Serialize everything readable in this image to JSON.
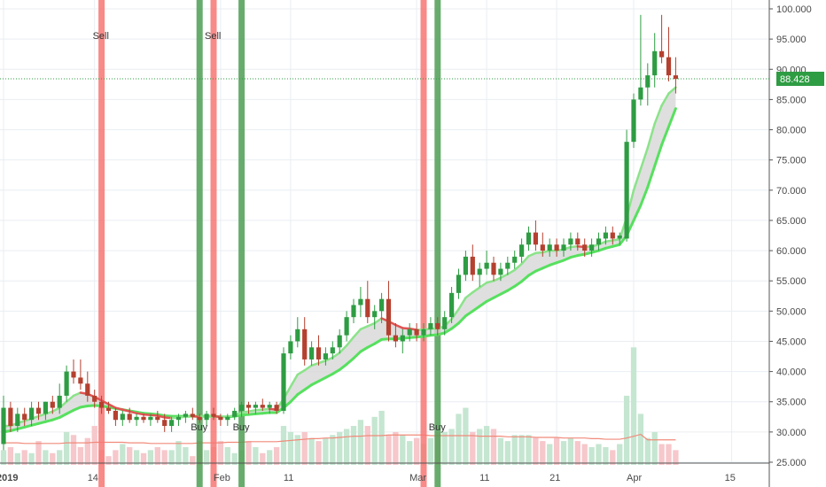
{
  "chart_data": {
    "type": "candlestick",
    "y_axis": {
      "min": 25,
      "max": 100,
      "ticks": [
        "25.000",
        "30.000",
        "35.000",
        "40.000",
        "45.000",
        "50.000",
        "55.000",
        "60.000",
        "65.000",
        "70.000",
        "75.000",
        "80.000",
        "85.000",
        "90.000",
        "95.000",
        "100.000"
      ]
    },
    "x_axis": {
      "ticks": [
        {
          "label": "2019",
          "day": 1,
          "bold": true
        },
        {
          "label": "14",
          "day": 14
        },
        {
          "label": "Feb",
          "day": 32
        },
        {
          "label": "11",
          "day": 42
        },
        {
          "label": "Mar",
          "day": 60
        },
        {
          "label": "11",
          "day": 70
        },
        {
          "label": "21",
          "day": 80
        },
        {
          "label": "Apr",
          "day": 91
        },
        {
          "label": "15",
          "day": 105
        }
      ]
    },
    "last_price": "88.428",
    "last_price_value": 88.428,
    "candles": [
      {
        "o": 28,
        "h": 36,
        "l": 27,
        "c": 34
      },
      {
        "o": 34,
        "h": 35,
        "l": 30,
        "c": 31
      },
      {
        "o": 31,
        "h": 34,
        "l": 30,
        "c": 33
      },
      {
        "o": 33,
        "h": 34,
        "l": 31,
        "c": 32
      },
      {
        "o": 32,
        "h": 35,
        "l": 31,
        "c": 34
      },
      {
        "o": 34,
        "h": 35,
        "l": 32,
        "c": 33
      },
      {
        "o": 33,
        "h": 35,
        "l": 32,
        "c": 35
      },
      {
        "o": 35,
        "h": 36,
        "l": 33,
        "c": 34
      },
      {
        "o": 34,
        "h": 38,
        "l": 33,
        "c": 36
      },
      {
        "o": 36,
        "h": 41,
        "l": 35,
        "c": 40
      },
      {
        "o": 40,
        "h": 42,
        "l": 38,
        "c": 39
      },
      {
        "o": 39,
        "h": 42,
        "l": 37,
        "c": 38
      },
      {
        "o": 38,
        "h": 40,
        "l": 35,
        "c": 36
      },
      {
        "o": 36,
        "h": 37,
        "l": 34,
        "c": 35
      },
      {
        "o": 35,
        "h": 36,
        "l": 33,
        "c": 34
      },
      {
        "o": 34,
        "h": 35,
        "l": 33,
        "c": 33.5
      },
      {
        "o": 33.5,
        "h": 34,
        "l": 31,
        "c": 32
      },
      {
        "o": 32,
        "h": 33.5,
        "l": 31,
        "c": 33
      },
      {
        "o": 33,
        "h": 34,
        "l": 31.5,
        "c": 32
      },
      {
        "o": 32,
        "h": 33,
        "l": 31,
        "c": 32.5
      },
      {
        "o": 32.5,
        "h": 33,
        "l": 31.5,
        "c": 32
      },
      {
        "o": 32,
        "h": 33,
        "l": 31,
        "c": 32.5
      },
      {
        "o": 32.5,
        "h": 33.5,
        "l": 31.5,
        "c": 32
      },
      {
        "o": 32,
        "h": 33,
        "l": 30,
        "c": 31
      },
      {
        "o": 31,
        "h": 32.5,
        "l": 30,
        "c": 32
      },
      {
        "o": 32,
        "h": 33,
        "l": 31,
        "c": 32.5
      },
      {
        "o": 32.5,
        "h": 33.5,
        "l": 31.5,
        "c": 33
      },
      {
        "o": 33,
        "h": 34,
        "l": 32,
        "c": 32.5
      },
      {
        "o": 32.5,
        "h": 33,
        "l": 31.5,
        "c": 32
      },
      {
        "o": 32,
        "h": 33.5,
        "l": 31,
        "c": 33
      },
      {
        "o": 33,
        "h": 34,
        "l": 32,
        "c": 32.5
      },
      {
        "o": 32.5,
        "h": 33,
        "l": 31,
        "c": 32
      },
      {
        "o": 32,
        "h": 33,
        "l": 31,
        "c": 32.5
      },
      {
        "o": 32.5,
        "h": 34,
        "l": 32,
        "c": 33.5
      },
      {
        "o": 33.5,
        "h": 35,
        "l": 32.5,
        "c": 34.5
      },
      {
        "o": 34.5,
        "h": 35,
        "l": 33,
        "c": 34
      },
      {
        "o": 34,
        "h": 35,
        "l": 33,
        "c": 34.5
      },
      {
        "o": 34.5,
        "h": 35.5,
        "l": 33.5,
        "c": 34
      },
      {
        "o": 34,
        "h": 35,
        "l": 33,
        "c": 34.5
      },
      {
        "o": 34.5,
        "h": 35,
        "l": 33,
        "c": 33.5
      },
      {
        "o": 33.5,
        "h": 44,
        "l": 33,
        "c": 43
      },
      {
        "o": 43,
        "h": 46,
        "l": 42,
        "c": 45
      },
      {
        "o": 45,
        "h": 49,
        "l": 44,
        "c": 47
      },
      {
        "o": 47,
        "h": 49,
        "l": 41,
        "c": 42
      },
      {
        "o": 42,
        "h": 45,
        "l": 41,
        "c": 44
      },
      {
        "o": 44,
        "h": 46,
        "l": 41,
        "c": 42
      },
      {
        "o": 42,
        "h": 44,
        "l": 41,
        "c": 43
      },
      {
        "o": 43,
        "h": 45,
        "l": 42,
        "c": 44
      },
      {
        "o": 44,
        "h": 47,
        "l": 43,
        "c": 46
      },
      {
        "o": 46,
        "h": 50,
        "l": 45,
        "c": 49
      },
      {
        "o": 49,
        "h": 52,
        "l": 48,
        "c": 51
      },
      {
        "o": 51,
        "h": 54,
        "l": 49,
        "c": 52
      },
      {
        "o": 52,
        "h": 55,
        "l": 48,
        "c": 49
      },
      {
        "o": 49,
        "h": 51,
        "l": 47,
        "c": 50
      },
      {
        "o": 50,
        "h": 53,
        "l": 48,
        "c": 52
      },
      {
        "o": 52,
        "h": 55,
        "l": 45,
        "c": 46
      },
      {
        "o": 46,
        "h": 48,
        "l": 44,
        "c": 45
      },
      {
        "o": 45,
        "h": 47,
        "l": 43,
        "c": 46
      },
      {
        "o": 46,
        "h": 48,
        "l": 45,
        "c": 47
      },
      {
        "o": 47,
        "h": 48,
        "l": 45,
        "c": 46
      },
      {
        "o": 46,
        "h": 48,
        "l": 45,
        "c": 47
      },
      {
        "o": 47,
        "h": 49,
        "l": 46,
        "c": 48
      },
      {
        "o": 48,
        "h": 49,
        "l": 46,
        "c": 47
      },
      {
        "o": 47,
        "h": 50,
        "l": 46,
        "c": 49
      },
      {
        "o": 49,
        "h": 54,
        "l": 48,
        "c": 53
      },
      {
        "o": 53,
        "h": 57,
        "l": 52,
        "c": 56
      },
      {
        "o": 56,
        "h": 60,
        "l": 55,
        "c": 59
      },
      {
        "o": 59,
        "h": 61,
        "l": 55,
        "c": 56
      },
      {
        "o": 56,
        "h": 58,
        "l": 54,
        "c": 57
      },
      {
        "o": 57,
        "h": 60,
        "l": 56,
        "c": 58
      },
      {
        "o": 58,
        "h": 59,
        "l": 55,
        "c": 56
      },
      {
        "o": 56,
        "h": 58,
        "l": 55,
        "c": 57
      },
      {
        "o": 57,
        "h": 59,
        "l": 56,
        "c": 58
      },
      {
        "o": 58,
        "h": 60,
        "l": 57,
        "c": 59
      },
      {
        "o": 59,
        "h": 62,
        "l": 58,
        "c": 61
      },
      {
        "o": 61,
        "h": 64,
        "l": 60,
        "c": 63
      },
      {
        "o": 63,
        "h": 65,
        "l": 60,
        "c": 61
      },
      {
        "o": 61,
        "h": 63,
        "l": 59,
        "c": 60
      },
      {
        "o": 60,
        "h": 62,
        "l": 59,
        "c": 61
      },
      {
        "o": 61,
        "h": 62,
        "l": 59,
        "c": 60
      },
      {
        "o": 60,
        "h": 62,
        "l": 59,
        "c": 61
      },
      {
        "o": 61,
        "h": 63,
        "l": 60,
        "c": 62
      },
      {
        "o": 62,
        "h": 63,
        "l": 60,
        "c": 61
      },
      {
        "o": 61,
        "h": 62,
        "l": 59,
        "c": 60
      },
      {
        "o": 60,
        "h": 62,
        "l": 59,
        "c": 61
      },
      {
        "o": 61,
        "h": 63,
        "l": 60,
        "c": 62
      },
      {
        "o": 62,
        "h": 64,
        "l": 61,
        "c": 63
      },
      {
        "o": 63,
        "h": 64,
        "l": 61,
        "c": 62
      },
      {
        "o": 62,
        "h": 63,
        "l": 61,
        "c": 62.5
      },
      {
        "o": 62,
        "h": 80,
        "l": 61.5,
        "c": 78
      },
      {
        "o": 78,
        "h": 86,
        "l": 77,
        "c": 85
      },
      {
        "o": 85,
        "h": 99,
        "l": 84,
        "c": 87
      },
      {
        "o": 87,
        "h": 91,
        "l": 84,
        "c": 89
      },
      {
        "o": 89,
        "h": 96,
        "l": 87,
        "c": 93
      },
      {
        "o": 93,
        "h": 99,
        "l": 91,
        "c": 92
      },
      {
        "o": 92,
        "h": 97,
        "l": 88,
        "c": 89
      },
      {
        "o": 89,
        "h": 92,
        "l": 86,
        "c": 88.4
      }
    ],
    "ema_fast": [
      31,
      31,
      31.5,
      31.8,
      32.2,
      32.6,
      33,
      33.4,
      34,
      35,
      36,
      36.5,
      36.3,
      35.8,
      35.2,
      34.6,
      34,
      33.7,
      33.4,
      33.1,
      32.9,
      32.8,
      32.7,
      32.4,
      32.3,
      32.4,
      32.5,
      32.6,
      32.5,
      32.6,
      32.6,
      32.5,
      32.5,
      32.8,
      33.2,
      33.4,
      33.6,
      33.7,
      33.8,
      33.7,
      35.5,
      37.5,
      39.5,
      40.2,
      41.0,
      41.4,
      41.8,
      42.3,
      43.1,
      44.3,
      45.7,
      47.0,
      47.5,
      48.0,
      48.8,
      48.3,
      47.7,
      47.2,
      47.1,
      46.9,
      46.9,
      47.1,
      47.1,
      47.5,
      48.7,
      50.3,
      52.2,
      53.1,
      53.9,
      54.7,
      55.0,
      55.5,
      56.1,
      56.8,
      57.8,
      59.1,
      59.6,
      59.7,
      60.0,
      60.0,
      60.2,
      60.6,
      60.7,
      60.6,
      60.7,
      61.0,
      61.5,
      61.7,
      61.9,
      65.5,
      70.0,
      73.5,
      77.0,
      81.0,
      84.0,
      86.0,
      87.0
    ],
    "ema_slow": [
      30,
      30.2,
      30.5,
      30.8,
      31.1,
      31.4,
      31.7,
      32.0,
      32.4,
      33.0,
      33.6,
      34.1,
      34.3,
      34.4,
      34.3,
      34.1,
      33.9,
      33.7,
      33.5,
      33.3,
      33.1,
      33.0,
      32.9,
      32.7,
      32.6,
      32.6,
      32.6,
      32.6,
      32.6,
      32.6,
      32.6,
      32.5,
      32.5,
      32.6,
      32.8,
      32.9,
      33.0,
      33.1,
      33.2,
      33.2,
      34.0,
      35.0,
      36.2,
      37.0,
      37.8,
      38.4,
      39.0,
      39.6,
      40.3,
      41.2,
      42.2,
      43.3,
      44.0,
      44.6,
      45.3,
      45.4,
      45.4,
      45.5,
      45.6,
      45.7,
      45.8,
      46.0,
      46.1,
      46.4,
      47.1,
      48.0,
      49.2,
      50.0,
      50.8,
      51.6,
      52.2,
      52.8,
      53.4,
      54.1,
      54.9,
      55.9,
      56.6,
      57.1,
      57.6,
      58.0,
      58.4,
      58.9,
      59.2,
      59.4,
      59.7,
      60.0,
      60.4,
      60.7,
      61.0,
      62.5,
      65.0,
      67.5,
      70.5,
      74.0,
      77.5,
      80.5,
      83.5
    ],
    "volume_ma": [
      28.2,
      28.2,
      28.2,
      28.1,
      28.1,
      28.1,
      28.1,
      28.1,
      28.1,
      28.2,
      28.2,
      28.2,
      28.2,
      28.3,
      28.3,
      28.3,
      28.3,
      28.3,
      28.2,
      28.2,
      28.2,
      28.1,
      28.1,
      28.1,
      28.1,
      28.1,
      28.1,
      28.1,
      28.2,
      28.2,
      28.2,
      28.2,
      28.3,
      28.3,
      28.3,
      28.4,
      28.4,
      28.4,
      28.4,
      28.4,
      28.5,
      28.6,
      28.7,
      28.8,
      28.9,
      28.9,
      29.0,
      29.0,
      29.1,
      29.2,
      29.3,
      29.3,
      29.4,
      29.4,
      29.4,
      29.5,
      29.5,
      29.5,
      29.5,
      29.5,
      29.5,
      29.4,
      29.4,
      29.4,
      29.4,
      29.4,
      29.4,
      29.4,
      29.3,
      29.3,
      29.3,
      29.3,
      29.2,
      29.2,
      29.2,
      29.2,
      29.1,
      29.1,
      29.1,
      29.1,
      29.0,
      29.0,
      29.0,
      29.0,
      28.9,
      28.9,
      28.8,
      28.8,
      28.8,
      29.0,
      29.3,
      29.6,
      28.7,
      28.7,
      28.7,
      28.7,
      28.7
    ],
    "volumes": [
      27,
      27.5,
      26.5,
      27,
      26.5,
      28.5,
      27,
      26.5,
      27,
      30,
      29.5,
      27.5,
      29,
      31,
      27,
      26,
      27,
      28,
      27.5,
      27,
      26.5,
      27,
      27.5,
      27,
      27,
      28.5,
      27.5,
      26,
      28.5,
      27,
      27.5,
      28.5,
      27.5,
      26.5,
      27,
      28.5,
      27.5,
      26.5,
      27,
      27.5,
      31,
      30,
      29.5,
      30,
      29,
      28.5,
      29,
      29.5,
      30,
      30.5,
      31,
      32,
      31,
      32.5,
      33.5,
      29.5,
      30,
      29.5,
      28.5,
      29,
      28,
      29,
      30,
      30,
      30.5,
      33,
      34,
      30,
      30.5,
      31,
      30.5,
      29,
      28.5,
      29.5,
      29.5,
      29.5,
      29,
      28.5,
      28,
      29,
      28.5,
      29,
      28.5,
      28,
      27.5,
      28,
      27.5,
      27,
      28,
      36,
      44,
      33,
      29,
      30,
      28,
      28,
      27
    ],
    "signals": [
      {
        "label": "Sell",
        "kind": "sell",
        "index": 14
      },
      {
        "label": "Buy",
        "kind": "buy",
        "index": 28
      },
      {
        "label": "Sell",
        "kind": "sell",
        "index": 30
      },
      {
        "label": "Buy",
        "kind": "buy",
        "index": 34
      },
      {
        "label": "Buy",
        "kind": "buy",
        "index": 62
      },
      {
        "label": "",
        "kind": "sell",
        "index": 60
      }
    ]
  },
  "colors": {
    "up": "#2e9c43",
    "down": "#b5402f",
    "buy_band": "#4e9d54",
    "sell_band": "#f77573",
    "ema_fast": "#8be38a",
    "ema_slow": "#57e05f",
    "ema_fast_down": "#e05454",
    "cloud": "#d7d7d7",
    "vol_up": "#c5e6d1",
    "vol_down": "#f6c7cb",
    "vol_ma": "#f08a7a",
    "price_line": "#2e9c43",
    "price_label_bg": "#2e9c43",
    "grid": "#e9eef2",
    "axis": "#555555"
  }
}
